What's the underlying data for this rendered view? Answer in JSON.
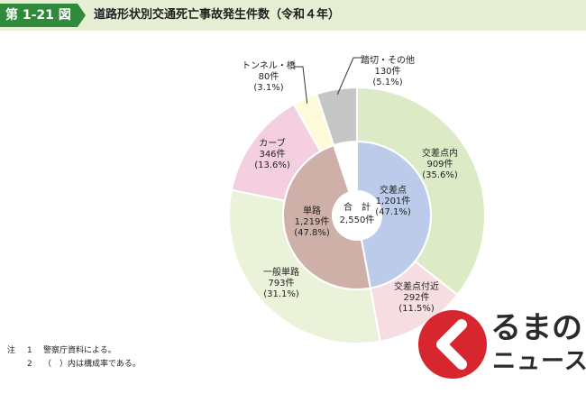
{
  "header": {
    "figure_number": "第 1-21 図",
    "title": "道路形状別交通死亡事故発生件数（令和４年）"
  },
  "center": {
    "label": "合　計",
    "value": "2,550件"
  },
  "chart_data": {
    "type": "pie",
    "title": "道路形状別交通死亡事故発生件数（令和４年）",
    "total": 2550,
    "inner_ring": [
      {
        "name": "交差点",
        "value": 1201,
        "count_label": "1,201件",
        "pct_label": "(47.1%)",
        "color": "#bccbe9"
      },
      {
        "name": "単路",
        "value": 1219,
        "count_label": "1,219件",
        "pct_label": "(47.8%)",
        "color": "#ceb0a8"
      }
    ],
    "outer_ring": [
      {
        "name": "交差点内",
        "value": 909,
        "count_label": "909件",
        "pct_label": "(35.6%)",
        "color": "#dcebc6"
      },
      {
        "name": "交差点付近",
        "value": 292,
        "count_label": "292件",
        "pct_label": "(11.5%)",
        "color": "#f6dde2"
      },
      {
        "name": "一般単路",
        "value": 793,
        "count_label": "793件",
        "pct_label": "(31.1%)",
        "color": "#eaf2d9"
      },
      {
        "name": "カーブ",
        "value": 346,
        "count_label": "346件",
        "pct_label": "(13.6%)",
        "color": "#f3cfe0"
      },
      {
        "name": "トンネル・橋",
        "value": 80,
        "count_label": "80件",
        "pct_label": "(3.1%)",
        "color": "#fdfbd9"
      },
      {
        "name": "踏切・その他",
        "value": 130,
        "count_label": "130件",
        "pct_label": "(5.1%)",
        "color": "#c6c6c6"
      }
    ]
  },
  "notes": {
    "mark": "注",
    "items": [
      {
        "num": "1",
        "text": "警察庁資料による。"
      },
      {
        "num": "2",
        "text": "（　）内は構成率である。"
      }
    ]
  },
  "watermark": {
    "line1": "るまの",
    "line2": "ニュース"
  }
}
